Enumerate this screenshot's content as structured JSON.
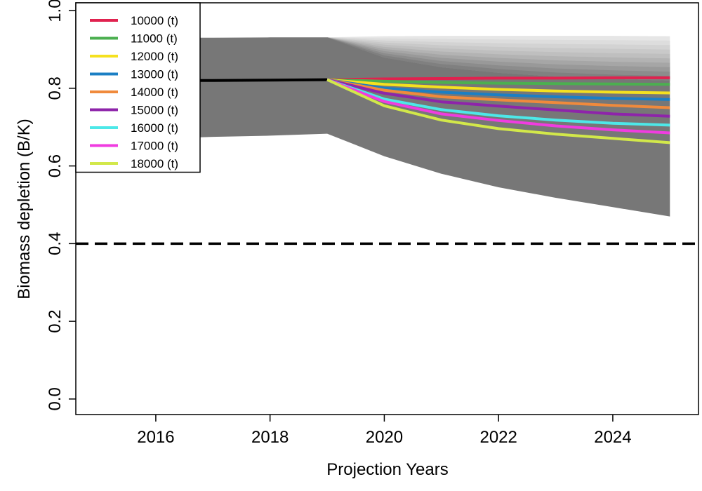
{
  "chart_data": {
    "type": "line",
    "xlabel": "Projection Years",
    "ylabel": "Biomass depletion (B/K)",
    "xlim": [
      2014.6,
      2025.5
    ],
    "ylim": [
      -0.04,
      1.02
    ],
    "xticks": [
      "2016",
      "2018",
      "2020",
      "2022",
      "2024"
    ],
    "yticks": [
      "0.0",
      "0.2",
      "0.4",
      "0.6",
      "0.8",
      "1.0"
    ],
    "reference_line": {
      "y": 0.4,
      "style": "dashed",
      "color": "#000000"
    },
    "legend": {
      "placement": "top-left"
    },
    "historical": {
      "x": [
        2015,
        2016,
        2017,
        2018,
        2019
      ],
      "y": [
        0.82,
        0.82,
        0.82,
        0.821,
        0.822
      ],
      "color": "#000000"
    },
    "uncertainty_band": {
      "color": "#777777",
      "x": [
        2015,
        2016,
        2017,
        2018,
        2019,
        2020,
        2021,
        2022,
        2023,
        2024,
        2025
      ],
      "upper": [
        0.93,
        0.93,
        0.93,
        0.931,
        0.931,
        0.879,
        0.854,
        0.84,
        0.83,
        0.824,
        0.82
      ],
      "lower": [
        0.665,
        0.67,
        0.675,
        0.678,
        0.683,
        0.625,
        0.58,
        0.545,
        0.518,
        0.494,
        0.47
      ]
    },
    "upper_fan": {
      "x": [
        2019,
        2020,
        2021,
        2022,
        2023,
        2024,
        2025
      ],
      "top": [
        0.931,
        0.934,
        0.935,
        0.935,
        0.935,
        0.935,
        0.934
      ],
      "shades": [
        "#e6e6e6",
        "#dddddd",
        "#d3d3d3",
        "#c9c9c9",
        "#bfbfbf",
        "#b3b3b3",
        "#a6a6a6",
        "#999999",
        "#8c8c8c",
        "#808080"
      ]
    },
    "series": [
      {
        "name": "10000 (t)",
        "color": "#e0224f",
        "x": [
          2019,
          2020,
          2021,
          2022,
          2023,
          2024,
          2025
        ],
        "values": [
          0.822,
          0.824,
          0.825,
          0.826,
          0.826,
          0.827,
          0.827
        ]
      },
      {
        "name": "11000 (t)",
        "color": "#4caf50",
        "x": [
          2019,
          2020,
          2021,
          2022,
          2023,
          2024,
          2025
        ],
        "values": [
          0.822,
          0.818,
          0.815,
          0.813,
          0.812,
          0.811,
          0.81
        ]
      },
      {
        "name": "12000 (t)",
        "color": "#f5e11f",
        "x": [
          2019,
          2020,
          2021,
          2022,
          2023,
          2024,
          2025
        ],
        "values": [
          0.822,
          0.81,
          0.803,
          0.797,
          0.793,
          0.79,
          0.788
        ]
      },
      {
        "name": "13000 (t)",
        "color": "#1b7fc4",
        "x": [
          2019,
          2020,
          2021,
          2022,
          2023,
          2024,
          2025
        ],
        "values": [
          0.822,
          0.8,
          0.79,
          0.783,
          0.778,
          0.774,
          0.771
        ]
      },
      {
        "name": "14000 (t)",
        "color": "#f08a3c",
        "x": [
          2019,
          2020,
          2021,
          2022,
          2023,
          2024,
          2025
        ],
        "values": [
          0.822,
          0.795,
          0.778,
          0.77,
          0.763,
          0.756,
          0.75
        ]
      },
      {
        "name": "15000 (t)",
        "color": "#8e24aa",
        "x": [
          2019,
          2020,
          2021,
          2022,
          2023,
          2024,
          2025
        ],
        "values": [
          0.822,
          0.787,
          0.765,
          0.754,
          0.744,
          0.734,
          0.728
        ]
      },
      {
        "name": "16000 (t)",
        "color": "#4de8e8",
        "x": [
          2019,
          2020,
          2021,
          2022,
          2023,
          2024,
          2025
        ],
        "values": [
          0.822,
          0.772,
          0.745,
          0.729,
          0.718,
          0.71,
          0.705
        ]
      },
      {
        "name": "17000 (t)",
        "color": "#f03ce0",
        "x": [
          2019,
          2020,
          2021,
          2022,
          2023,
          2024,
          2025
        ],
        "values": [
          0.822,
          0.766,
          0.734,
          0.717,
          0.703,
          0.693,
          0.685
        ]
      },
      {
        "name": "18000 (t)",
        "color": "#d2e84a",
        "x": [
          2019,
          2020,
          2021,
          2022,
          2023,
          2024,
          2025
        ],
        "values": [
          0.822,
          0.755,
          0.718,
          0.696,
          0.682,
          0.671,
          0.66
        ]
      }
    ]
  }
}
